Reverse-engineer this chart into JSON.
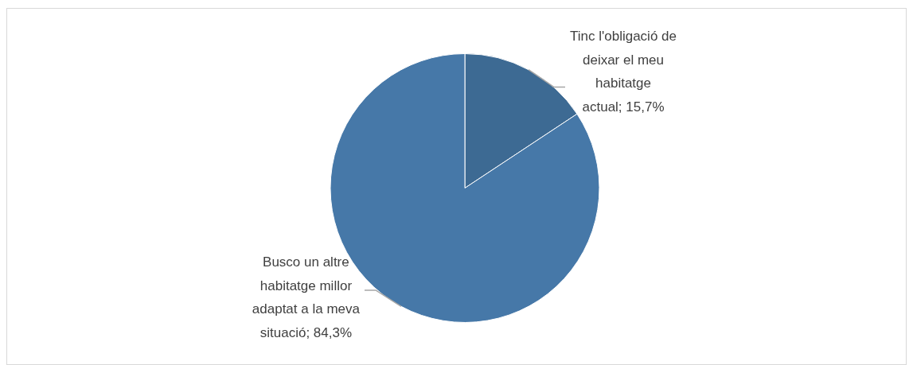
{
  "chart_data": {
    "type": "pie",
    "categories": [
      "Tinc l'obligació de deixar el meu habitatge actual",
      "Busco un altre habitatge millor adaptat a la meva situació"
    ],
    "values": [
      15.7,
      84.3
    ],
    "colors": [
      "#3d6a93",
      "#4678a8"
    ],
    "value_labels": [
      "15,7%",
      "84,3%"
    ]
  }
}
